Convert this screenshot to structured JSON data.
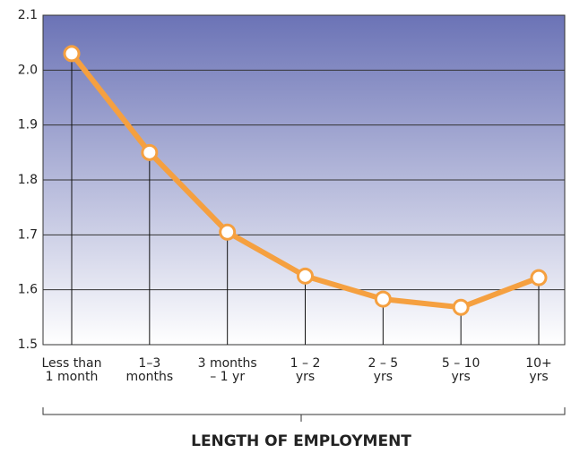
{
  "chart_data": {
    "type": "line",
    "xlabel": "LENGTH OF EMPLOYMENT",
    "categories": [
      "Less than\n1 month",
      "1–3\nmonths",
      "3 months\n– 1 yr",
      "1 – 2\nyrs",
      "2 – 5\nyrs",
      "5 – 10\nyrs",
      "10+\nyrs"
    ],
    "values": [
      2.03,
      1.85,
      1.705,
      1.625,
      1.583,
      1.568,
      1.622
    ],
    "color": "#f5a040",
    "ylim": [
      1.5,
      2.1
    ],
    "yticks": [
      1.5,
      1.6,
      1.7,
      1.8,
      1.9,
      {
        "value": 2.0,
        "label": "2.0"
      },
      2.1
    ],
    "grid": true
  }
}
